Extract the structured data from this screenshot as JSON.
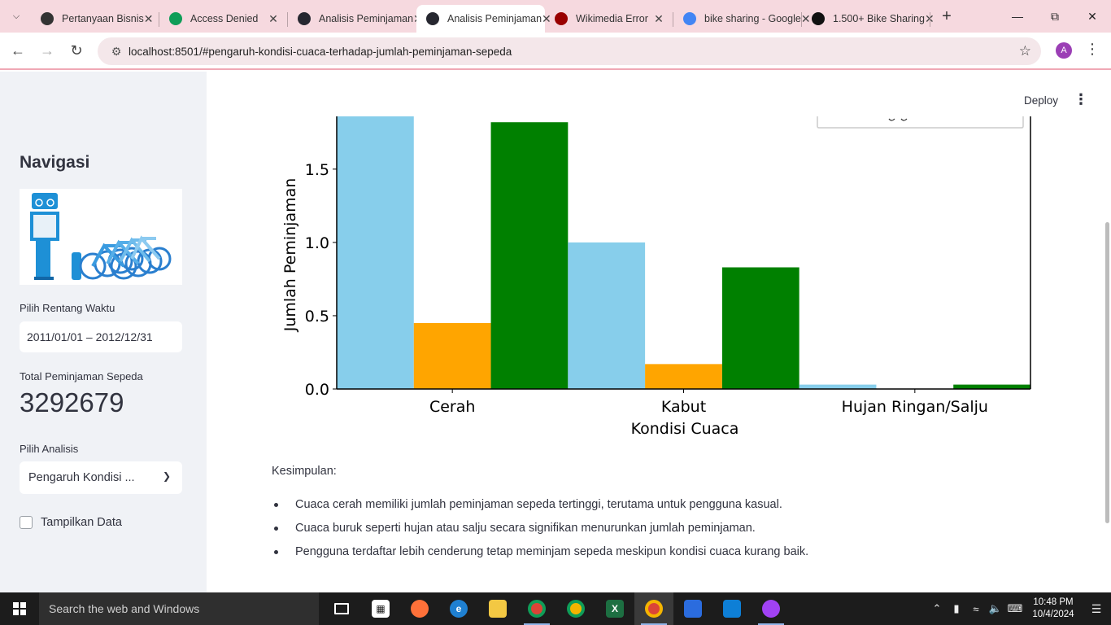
{
  "browser": {
    "tabs": [
      {
        "title": "Pertanyaan Bisnis",
        "icon": "openai-icon",
        "color": "#333333",
        "active": false
      },
      {
        "title": "Access Denied",
        "icon": "sheets-icon",
        "color": "#0f9d58",
        "active": false
      },
      {
        "title": "Analisis Peminjaman",
        "icon": "streamlit-icon",
        "color": "#262730",
        "active": false
      },
      {
        "title": "Analisis Peminjaman",
        "icon": "streamlit-icon",
        "color": "#262730",
        "active": true
      },
      {
        "title": "Wikimedia Error",
        "icon": "wikimedia-icon",
        "color": "#990000",
        "active": false
      },
      {
        "title": "bike sharing - Google",
        "icon": "google-icon",
        "color": "#4285f4",
        "active": false
      },
      {
        "title": "1.500+ Bike Sharing",
        "icon": "istock-icon",
        "color": "#111111",
        "active": false
      }
    ],
    "url": "localhost:8501/#pengaruh-kondisi-cuaca-terhadap-jumlah-peminjaman-sepeda",
    "profile_initial": "A"
  },
  "sidebar": {
    "heading": "Navigasi",
    "date_label": "Pilih Rentang Waktu",
    "date_value": "2011/01/01 – 2012/12/31",
    "metric_label": "Total Peminjaman Sepeda",
    "metric_value": "3292679",
    "analysis_label": "Pilih Analisis",
    "analysis_value": "Pengaruh Kondisi ...",
    "checkbox_label": "Tampilkan Data"
  },
  "header": {
    "deploy_label": "Deploy"
  },
  "chart_data": {
    "type": "bar",
    "categories": [
      "Cerah",
      "Kabut",
      "Hujan Ringan/Salju"
    ],
    "series": [
      {
        "color": "#87ceeb",
        "values": [
          1.87,
          1.0,
          0.03
        ]
      },
      {
        "color": "#ffa500",
        "values": [
          0.45,
          0.17,
          0.0
        ]
      },
      {
        "color": "#008000",
        "values": [
          1.82,
          0.83,
          0.03
        ]
      }
    ],
    "xlabel": "Kondisi Cuaca",
    "ylabel": "Jumlah Peminjaman",
    "yticks": [
      "0.0",
      "0.5",
      "1.0",
      "1.5"
    ],
    "ylim": [
      0,
      1.86
    ]
  },
  "conclusion": {
    "title": "Kesimpulan:",
    "items": [
      "Cuaca cerah memiliki jumlah peminjaman sepeda tertinggi, terutama untuk pengguna kasual.",
      "Cuaca buruk seperti hujan atau salju secara signifikan menurunkan jumlah peminjaman.",
      "Pengguna terdaftar lebih cenderung tetap meminjam sepeda meskipun kondisi cuaca kurang baik."
    ]
  },
  "taskbar": {
    "search_placeholder": "Search the web and Windows",
    "time": "10:48 PM",
    "date": "10/4/2024"
  }
}
